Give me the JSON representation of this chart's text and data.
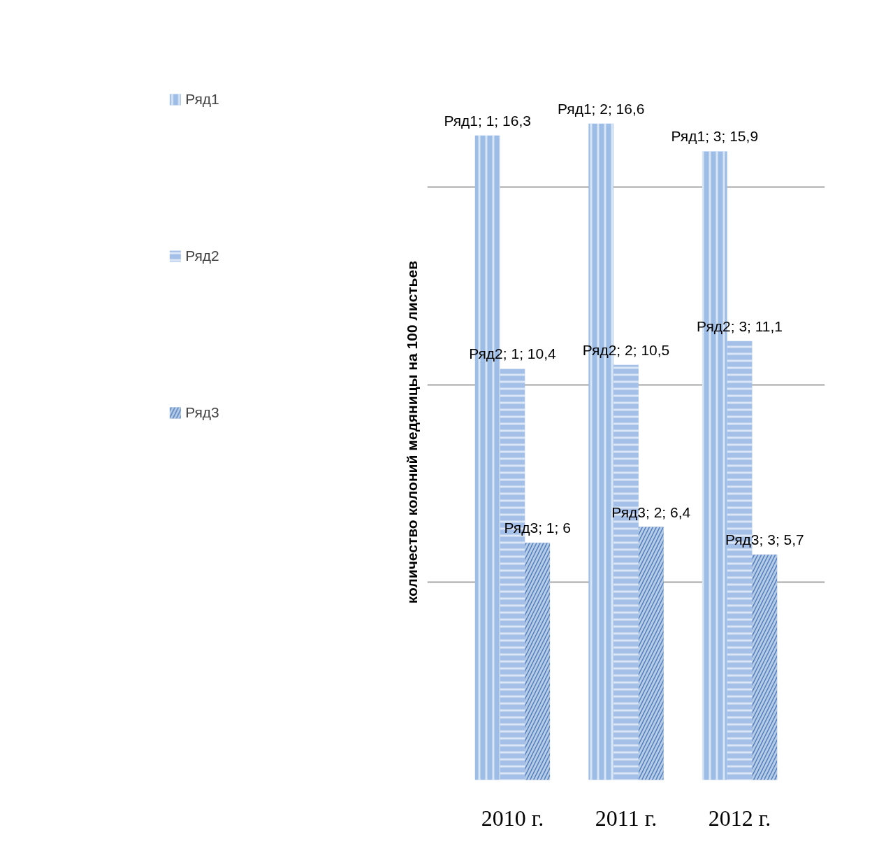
{
  "chart_data": {
    "type": "bar",
    "ylabel": "количество колоний медяницы на 100 листьев",
    "categories": [
      "2010 г.",
      "2011 г.",
      "2012 г."
    ],
    "series": [
      {
        "name": "Ряд1",
        "color": "#9dbde6",
        "values": [
          16.3,
          16.6,
          15.9
        ],
        "value_labels": [
          "Ряд1; 1; 16,3",
          "Ряд1; 2; 16,6",
          "Ряд1; 3; 15,9"
        ]
      },
      {
        "name": "Ряд2",
        "color": "#a4c0e8",
        "values": [
          10.4,
          10.5,
          11.1
        ],
        "value_labels": [
          "Ряд2; 1; 10,4",
          "Ряд2; 2; 10,5",
          "Ряд2; 3; 11,1"
        ]
      },
      {
        "name": "Ряд3",
        "color": "#4f7fc0",
        "values": [
          6,
          6.4,
          5.7
        ],
        "value_labels": [
          "Ряд3; 1; 6",
          "Ряд3; 2; 6,4",
          "Ряд3; 3; 5,7"
        ]
      }
    ],
    "grid": "y",
    "legend": "left",
    "tick_labels": "x"
  }
}
